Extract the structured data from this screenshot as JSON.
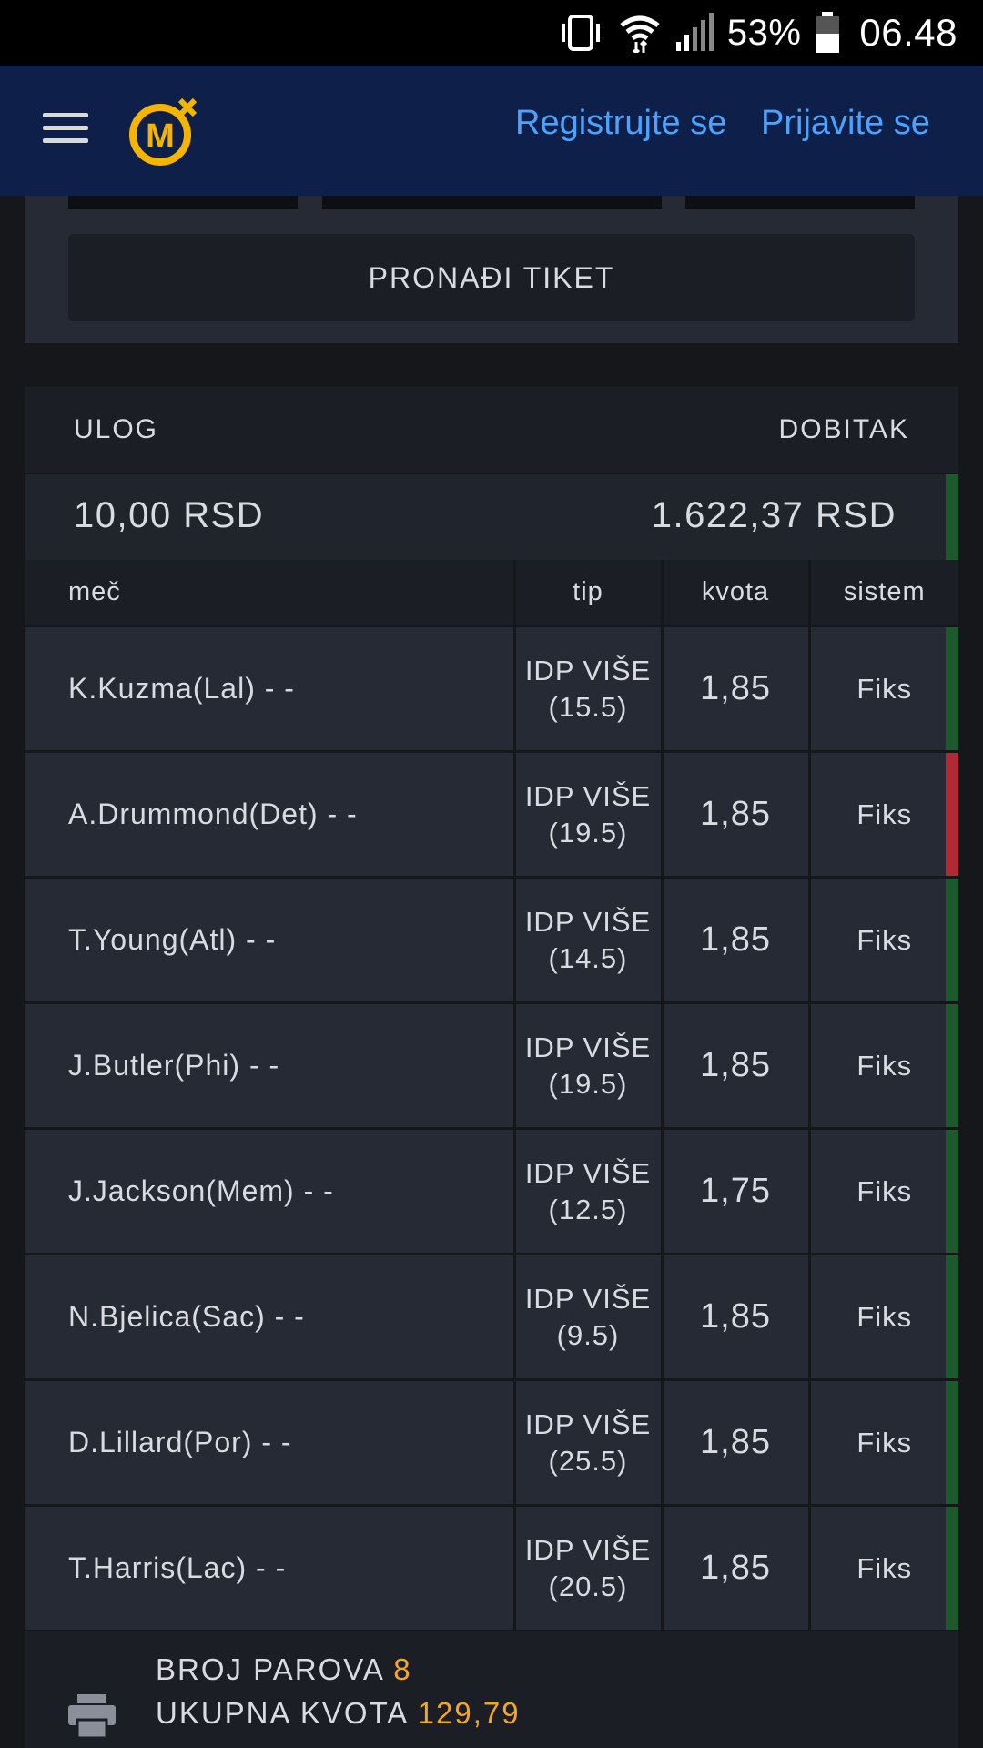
{
  "status_bar": {
    "battery": "53%",
    "time": "06.48",
    "icons": [
      "vibrate-icon",
      "wifi-icon",
      "signal-icon",
      "battery-icon"
    ]
  },
  "header": {
    "menu_icon": "hamburger-icon",
    "logo": "mozzart-logo",
    "register": "Registrujte se",
    "login": "Prijavite se",
    "link_color": "#4ba2ff",
    "bg_color": "#0e1f4a"
  },
  "find_ticket": {
    "button": "PRONAĐI TIKET"
  },
  "ticket": {
    "stake_label": "ULOG",
    "win_label": "DOBITAK",
    "stake": "10,00 RSD",
    "win": "1.622,37 RSD",
    "columns": [
      "meč",
      "tip",
      "kvota",
      "sistem"
    ],
    "rows": [
      {
        "match": "K.Kuzma(Lal) - -",
        "tip1": "IDP VIŠE",
        "tip2": "(15.5)",
        "odd": "1,85",
        "system": "Fiks",
        "status": "won"
      },
      {
        "match": "A.Drummond(Det) - -",
        "tip1": "IDP VIŠE",
        "tip2": "(19.5)",
        "odd": "1,85",
        "system": "Fiks",
        "status": "lost"
      },
      {
        "match": "T.Young(Atl) - -",
        "tip1": "IDP VIŠE",
        "tip2": "(14.5)",
        "odd": "1,85",
        "system": "Fiks",
        "status": "won"
      },
      {
        "match": "J.Butler(Phi) - -",
        "tip1": "IDP VIŠE",
        "tip2": "(19.5)",
        "odd": "1,85",
        "system": "Fiks",
        "status": "won"
      },
      {
        "match": "J.Jackson(Mem) - -",
        "tip1": "IDP VIŠE",
        "tip2": "(12.5)",
        "odd": "1,75",
        "system": "Fiks",
        "status": "won"
      },
      {
        "match": "N.Bjelica(Sac) - -",
        "tip1": "IDP VIŠE",
        "tip2": "(9.5)",
        "odd": "1,85",
        "system": "Fiks",
        "status": "won"
      },
      {
        "match": "D.Lillard(Por) - -",
        "tip1": "IDP VIŠE",
        "tip2": "(25.5)",
        "odd": "1,85",
        "system": "Fiks",
        "status": "won"
      },
      {
        "match": "T.Harris(Lac) - -",
        "tip1": "IDP VIŠE",
        "tip2": "(20.5)",
        "odd": "1,85",
        "system": "Fiks",
        "status": "won"
      }
    ],
    "status_colors": {
      "won": "#1c5a2c",
      "lost": "#b02a33"
    }
  },
  "summary": {
    "pairs_label": "BROJ PAROVA",
    "pairs": "8",
    "total_odds_label": "UKUPNA KVOTA",
    "total_odds": "129,79",
    "accent": "#f5a623"
  }
}
